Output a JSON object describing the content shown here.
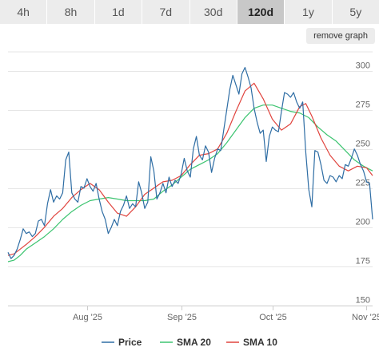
{
  "tabs": [
    {
      "label": "4h",
      "active": false
    },
    {
      "label": "8h",
      "active": false
    },
    {
      "label": "1d",
      "active": false
    },
    {
      "label": "7d",
      "active": false
    },
    {
      "label": "30d",
      "active": false
    },
    {
      "label": "120d",
      "active": true
    },
    {
      "label": "1y",
      "active": false
    },
    {
      "label": "5y",
      "active": false
    }
  ],
  "remove_graph_label": "remove graph",
  "chart_data": {
    "type": "line",
    "x_range": [
      "2025-07-06",
      "2025-11-03"
    ],
    "ylim": [
      150,
      312
    ],
    "y_ticks": [
      150,
      175,
      200,
      225,
      250,
      275,
      300
    ],
    "x_ticks": [
      {
        "date": "2025-08-01",
        "label": "Aug '25"
      },
      {
        "date": "2025-09-01",
        "label": "Sep '25"
      },
      {
        "date": "2025-10-01",
        "label": "Oct '25"
      },
      {
        "date": "2025-11-01",
        "label": "Nov '25"
      }
    ],
    "grid": {
      "horizontal": true,
      "vertical": false
    },
    "legend_position": "bottom-center",
    "series": [
      {
        "name": "Price",
        "color": "#2e6da4",
        "points": [
          [
            "2025-07-06",
            184
          ],
          [
            "2025-07-07",
            180
          ],
          [
            "2025-07-08",
            182
          ],
          [
            "2025-07-09",
            186
          ],
          [
            "2025-07-10",
            192
          ],
          [
            "2025-07-11",
            199
          ],
          [
            "2025-07-12",
            196
          ],
          [
            "2025-07-13",
            197
          ],
          [
            "2025-07-14",
            194
          ],
          [
            "2025-07-15",
            196
          ],
          [
            "2025-07-16",
            204
          ],
          [
            "2025-07-17",
            205
          ],
          [
            "2025-07-18",
            201
          ],
          [
            "2025-07-19",
            215
          ],
          [
            "2025-07-20",
            224
          ],
          [
            "2025-07-21",
            216
          ],
          [
            "2025-07-22",
            220
          ],
          [
            "2025-07-23",
            218
          ],
          [
            "2025-07-24",
            222
          ],
          [
            "2025-07-25",
            243
          ],
          [
            "2025-07-26",
            248
          ],
          [
            "2025-07-27",
            222
          ],
          [
            "2025-07-28",
            218
          ],
          [
            "2025-07-29",
            216
          ],
          [
            "2025-07-30",
            226
          ],
          [
            "2025-07-31",
            225
          ],
          [
            "2025-08-01",
            231
          ],
          [
            "2025-08-02",
            226
          ],
          [
            "2025-08-03",
            223
          ],
          [
            "2025-08-04",
            228
          ],
          [
            "2025-08-05",
            218
          ],
          [
            "2025-08-06",
            210
          ],
          [
            "2025-08-07",
            205
          ],
          [
            "2025-08-08",
            196
          ],
          [
            "2025-08-09",
            200
          ],
          [
            "2025-08-10",
            205
          ],
          [
            "2025-08-11",
            201
          ],
          [
            "2025-08-12",
            210
          ],
          [
            "2025-08-13",
            214
          ],
          [
            "2025-08-14",
            220
          ],
          [
            "2025-08-15",
            212
          ],
          [
            "2025-08-16",
            215
          ],
          [
            "2025-08-17",
            213
          ],
          [
            "2025-08-18",
            229
          ],
          [
            "2025-08-19",
            222
          ],
          [
            "2025-08-20",
            212
          ],
          [
            "2025-08-21",
            216
          ],
          [
            "2025-08-22",
            245
          ],
          [
            "2025-08-23",
            236
          ],
          [
            "2025-08-24",
            218
          ],
          [
            "2025-08-25",
            222
          ],
          [
            "2025-08-26",
            228
          ],
          [
            "2025-08-27",
            222
          ],
          [
            "2025-08-28",
            232
          ],
          [
            "2025-08-29",
            226
          ],
          [
            "2025-08-30",
            230
          ],
          [
            "2025-08-31",
            228
          ],
          [
            "2025-09-01",
            234
          ],
          [
            "2025-09-02",
            244
          ],
          [
            "2025-09-03",
            236
          ],
          [
            "2025-09-04",
            232
          ],
          [
            "2025-09-05",
            250
          ],
          [
            "2025-09-06",
            258
          ],
          [
            "2025-09-07",
            246
          ],
          [
            "2025-09-08",
            243
          ],
          [
            "2025-09-09",
            252
          ],
          [
            "2025-09-10",
            248
          ],
          [
            "2025-09-11",
            235
          ],
          [
            "2025-09-12",
            244
          ],
          [
            "2025-09-13",
            250
          ],
          [
            "2025-09-14",
            249
          ],
          [
            "2025-09-15",
            262
          ],
          [
            "2025-09-16",
            275
          ],
          [
            "2025-09-17",
            288
          ],
          [
            "2025-09-18",
            297
          ],
          [
            "2025-09-19",
            291
          ],
          [
            "2025-09-20",
            285
          ],
          [
            "2025-09-21",
            298
          ],
          [
            "2025-09-22",
            302
          ],
          [
            "2025-09-23",
            296
          ],
          [
            "2025-09-24",
            289
          ],
          [
            "2025-09-25",
            276
          ],
          [
            "2025-09-26",
            267
          ],
          [
            "2025-09-27",
            260
          ],
          [
            "2025-09-28",
            262
          ],
          [
            "2025-09-29",
            242
          ],
          [
            "2025-09-30",
            258
          ],
          [
            "2025-10-01",
            264
          ],
          [
            "2025-10-02",
            262
          ],
          [
            "2025-10-03",
            261
          ],
          [
            "2025-10-04",
            274
          ],
          [
            "2025-10-05",
            286
          ],
          [
            "2025-10-06",
            285
          ],
          [
            "2025-10-07",
            283
          ],
          [
            "2025-10-08",
            286
          ],
          [
            "2025-10-09",
            280
          ],
          [
            "2025-10-10",
            276
          ],
          [
            "2025-10-11",
            280
          ],
          [
            "2025-10-12",
            248
          ],
          [
            "2025-10-13",
            224
          ],
          [
            "2025-10-14",
            213
          ],
          [
            "2025-10-15",
            249
          ],
          [
            "2025-10-16",
            248
          ],
          [
            "2025-10-17",
            240
          ],
          [
            "2025-10-18",
            230
          ],
          [
            "2025-10-19",
            228
          ],
          [
            "2025-10-20",
            233
          ],
          [
            "2025-10-21",
            232
          ],
          [
            "2025-10-22",
            229
          ],
          [
            "2025-10-23",
            233
          ],
          [
            "2025-10-24",
            231
          ],
          [
            "2025-10-25",
            240
          ],
          [
            "2025-10-26",
            239
          ],
          [
            "2025-10-27",
            244
          ],
          [
            "2025-10-28",
            250
          ],
          [
            "2025-10-29",
            246
          ],
          [
            "2025-10-30",
            240
          ],
          [
            "2025-10-31",
            236
          ],
          [
            "2025-11-01",
            229
          ],
          [
            "2025-11-02",
            228
          ],
          [
            "2025-11-03",
            205
          ]
        ]
      },
      {
        "name": "SMA 20",
        "color": "#3cc470",
        "points": [
          [
            "2025-07-06",
            178
          ],
          [
            "2025-07-08",
            179
          ],
          [
            "2025-07-10",
            182
          ],
          [
            "2025-07-12",
            186
          ],
          [
            "2025-07-15",
            190
          ],
          [
            "2025-07-18",
            194
          ],
          [
            "2025-07-21",
            199
          ],
          [
            "2025-07-24",
            205
          ],
          [
            "2025-07-27",
            210
          ],
          [
            "2025-07-30",
            214
          ],
          [
            "2025-08-02",
            217
          ],
          [
            "2025-08-05",
            218
          ],
          [
            "2025-08-08",
            219
          ],
          [
            "2025-08-11",
            218
          ],
          [
            "2025-08-14",
            217
          ],
          [
            "2025-08-17",
            217
          ],
          [
            "2025-08-20",
            217
          ],
          [
            "2025-08-23",
            218
          ],
          [
            "2025-08-26",
            223
          ],
          [
            "2025-08-29",
            227
          ],
          [
            "2025-09-01",
            232
          ],
          [
            "2025-09-04",
            237
          ],
          [
            "2025-09-07",
            240
          ],
          [
            "2025-09-10",
            243
          ],
          [
            "2025-09-13",
            247
          ],
          [
            "2025-09-16",
            254
          ],
          [
            "2025-09-19",
            262
          ],
          [
            "2025-09-22",
            270
          ],
          [
            "2025-09-25",
            276
          ],
          [
            "2025-09-28",
            278
          ],
          [
            "2025-10-01",
            278
          ],
          [
            "2025-10-04",
            276
          ],
          [
            "2025-10-07",
            274
          ],
          [
            "2025-10-10",
            273
          ],
          [
            "2025-10-13",
            270
          ],
          [
            "2025-10-16",
            264
          ],
          [
            "2025-10-19",
            259
          ],
          [
            "2025-10-22",
            255
          ],
          [
            "2025-10-25",
            249
          ],
          [
            "2025-10-28",
            243
          ],
          [
            "2025-10-31",
            239
          ],
          [
            "2025-11-03",
            236
          ]
        ]
      },
      {
        "name": "SMA 10",
        "color": "#e0443e",
        "points": [
          [
            "2025-07-06",
            182
          ],
          [
            "2025-07-08",
            183
          ],
          [
            "2025-07-10",
            186
          ],
          [
            "2025-07-12",
            189
          ],
          [
            "2025-07-15",
            194
          ],
          [
            "2025-07-18",
            200
          ],
          [
            "2025-07-21",
            207
          ],
          [
            "2025-07-24",
            212
          ],
          [
            "2025-07-27",
            219
          ],
          [
            "2025-07-30",
            224
          ],
          [
            "2025-08-02",
            228
          ],
          [
            "2025-08-05",
            224
          ],
          [
            "2025-08-08",
            216
          ],
          [
            "2025-08-11",
            209
          ],
          [
            "2025-08-14",
            207
          ],
          [
            "2025-08-17",
            213
          ],
          [
            "2025-08-20",
            221
          ],
          [
            "2025-08-23",
            225
          ],
          [
            "2025-08-26",
            229
          ],
          [
            "2025-08-29",
            230
          ],
          [
            "2025-09-01",
            233
          ],
          [
            "2025-09-04",
            240
          ],
          [
            "2025-09-07",
            246
          ],
          [
            "2025-09-10",
            247
          ],
          [
            "2025-09-13",
            250
          ],
          [
            "2025-09-16",
            260
          ],
          [
            "2025-09-19",
            274
          ],
          [
            "2025-09-22",
            287
          ],
          [
            "2025-09-25",
            292
          ],
          [
            "2025-09-28",
            282
          ],
          [
            "2025-10-01",
            269
          ],
          [
            "2025-10-04",
            262
          ],
          [
            "2025-10-07",
            266
          ],
          [
            "2025-10-10",
            277
          ],
          [
            "2025-10-12",
            279
          ],
          [
            "2025-10-14",
            271
          ],
          [
            "2025-10-17",
            257
          ],
          [
            "2025-10-20",
            246
          ],
          [
            "2025-10-23",
            239
          ],
          [
            "2025-10-26",
            236
          ],
          [
            "2025-10-29",
            239
          ],
          [
            "2025-11-01",
            238
          ],
          [
            "2025-11-03",
            233
          ]
        ]
      }
    ]
  }
}
